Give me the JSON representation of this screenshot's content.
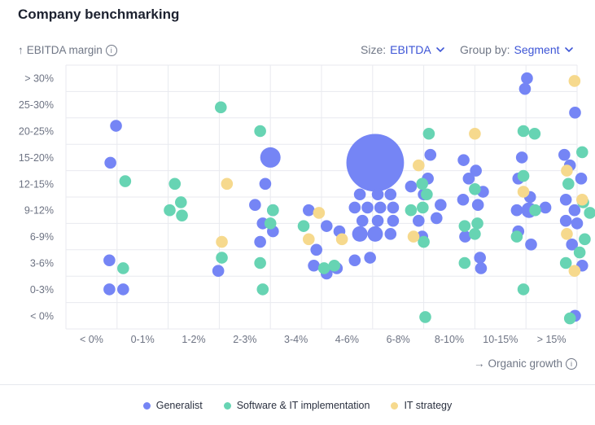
{
  "title": "Company benchmarking",
  "y_axis_label": "EBITDA margin",
  "x_axis_label": "Organic growth",
  "arrow_up": "↑",
  "arrow_right": "→",
  "info_glyph": "i",
  "size_control": {
    "label": "Size:",
    "value": "EBITDA"
  },
  "group_control": {
    "label": "Group by:",
    "value": "Segment"
  },
  "colors": {
    "Generalist": "#7585f5",
    "Software & IT implementation": "#67d4b3",
    "IT strategy": "#f6d98d",
    "grid": "#e8eaef",
    "tick": "#6d7383"
  },
  "legend": [
    {
      "label": "Generalist",
      "color": "#7585f5"
    },
    {
      "label": "Software & IT implementation",
      "color": "#67d4b3"
    },
    {
      "label": "IT strategy",
      "color": "#f6d98d"
    }
  ],
  "chart_data": {
    "type": "scatter",
    "title": "Company benchmarking",
    "xlabel": "Organic growth",
    "ylabel": "EBITDA margin",
    "x_categories": [
      "< 0%",
      "0-1%",
      "1-2%",
      "2-3%",
      "3-4%",
      "4-6%",
      "6-8%",
      "8-10%",
      "10-15%",
      "> 15%"
    ],
    "y_categories": [
      "< 0%",
      "0-3%",
      "3-6%",
      "6-9%",
      "9-12%",
      "12-15%",
      "15-20%",
      "20-25%",
      "25-30%",
      "> 30%"
    ],
    "size_by": "EBITDA",
    "group_by": "Segment",
    "series": [
      {
        "name": "Generalist",
        "points": [
          [
            0.48,
            7.2,
            1
          ],
          [
            0.37,
            5.8,
            1
          ],
          [
            0.35,
            2.1,
            1
          ],
          [
            0.35,
            1.0,
            1
          ],
          [
            0.62,
            1.0,
            1
          ],
          [
            2.48,
            1.7,
            1
          ],
          [
            3.5,
            6.0,
            3
          ],
          [
            3.4,
            5.0,
            1
          ],
          [
            3.2,
            4.2,
            1
          ],
          [
            3.55,
            4.0,
            1
          ],
          [
            3.35,
            3.5,
            1
          ],
          [
            3.55,
            3.2,
            1
          ],
          [
            3.3,
            2.8,
            1
          ],
          [
            4.25,
            4.0,
            1
          ],
          [
            4.6,
            3.4,
            1
          ],
          [
            4.85,
            3.2,
            1
          ],
          [
            4.4,
            2.5,
            1
          ],
          [
            4.8,
            1.8,
            1
          ],
          [
            4.6,
            1.6,
            1
          ],
          [
            4.35,
            1.9,
            1
          ],
          [
            5.55,
            5.8,
            6
          ],
          [
            5.25,
            4.6,
            1
          ],
          [
            5.6,
            4.6,
            1
          ],
          [
            5.85,
            4.6,
            1
          ],
          [
            5.15,
            4.1,
            1
          ],
          [
            5.4,
            4.1,
            1
          ],
          [
            5.65,
            4.1,
            1
          ],
          [
            5.9,
            4.1,
            1
          ],
          [
            5.3,
            3.6,
            1
          ],
          [
            5.6,
            3.6,
            1
          ],
          [
            5.9,
            3.6,
            1
          ],
          [
            5.25,
            3.1,
            2
          ],
          [
            5.55,
            3.1,
            2
          ],
          [
            5.85,
            3.1,
            1
          ],
          [
            5.15,
            2.1,
            1
          ],
          [
            5.45,
            2.2,
            1
          ],
          [
            6.63,
            6.1,
            1
          ],
          [
            6.58,
            5.2,
            1
          ],
          [
            6.25,
            4.9,
            1
          ],
          [
            6.83,
            4.2,
            1
          ],
          [
            6.5,
            4.6,
            1
          ],
          [
            6.75,
            3.7,
            1
          ],
          [
            6.4,
            3.6,
            1
          ],
          [
            6.47,
            3.0,
            1
          ],
          [
            7.28,
            5.9,
            1
          ],
          [
            7.52,
            5.5,
            1
          ],
          [
            7.38,
            5.2,
            1
          ],
          [
            7.66,
            4.7,
            1
          ],
          [
            7.27,
            4.4,
            1
          ],
          [
            7.56,
            4.2,
            1
          ],
          [
            7.31,
            3.0,
            1
          ],
          [
            7.6,
            2.2,
            1
          ],
          [
            7.62,
            1.8,
            1
          ],
          [
            8.52,
            9.0,
            1
          ],
          [
            8.48,
            8.6,
            1
          ],
          [
            8.42,
            6.0,
            1
          ],
          [
            8.35,
            5.2,
            1
          ],
          [
            8.58,
            4.5,
            1
          ],
          [
            8.32,
            4.0,
            1
          ],
          [
            8.56,
            4.0,
            2
          ],
          [
            8.88,
            4.1,
            1
          ],
          [
            8.35,
            3.2,
            1
          ],
          [
            8.6,
            2.7,
            1
          ],
          [
            9.46,
            7.7,
            1
          ],
          [
            9.25,
            6.1,
            1
          ],
          [
            9.36,
            5.7,
            1
          ],
          [
            9.58,
            5.2,
            1
          ],
          [
            9.28,
            4.4,
            1
          ],
          [
            9.45,
            4.0,
            1
          ],
          [
            9.28,
            3.6,
            1
          ],
          [
            9.5,
            3.5,
            1
          ],
          [
            9.4,
            2.7,
            1
          ],
          [
            9.6,
            1.9,
            1
          ],
          [
            9.46,
            0.0,
            1
          ]
        ]
      },
      {
        "name": "Software & IT implementation",
        "points": [
          [
            0.66,
            5.1,
            1
          ],
          [
            0.62,
            1.8,
            1
          ],
          [
            1.63,
            5.0,
            1
          ],
          [
            1.75,
            4.3,
            1
          ],
          [
            1.53,
            4.0,
            1
          ],
          [
            1.77,
            3.8,
            1
          ],
          [
            2.53,
            7.9,
            1
          ],
          [
            2.55,
            2.2,
            1
          ],
          [
            3.3,
            7.0,
            1
          ],
          [
            3.55,
            4.0,
            1
          ],
          [
            3.5,
            3.5,
            1
          ],
          [
            3.3,
            2.0,
            1
          ],
          [
            3.35,
            1.0,
            1
          ],
          [
            4.15,
            3.4,
            1
          ],
          [
            4.55,
            1.8,
            1
          ],
          [
            4.75,
            1.9,
            1
          ],
          [
            6.6,
            6.9,
            1
          ],
          [
            6.47,
            5.0,
            1
          ],
          [
            6.56,
            4.6,
            1
          ],
          [
            6.25,
            4.0,
            1
          ],
          [
            6.48,
            4.1,
            1
          ],
          [
            6.5,
            2.8,
            1
          ],
          [
            6.53,
            -0.05,
            1
          ],
          [
            7.5,
            4.8,
            1
          ],
          [
            7.55,
            3.5,
            1
          ],
          [
            7.3,
            3.4,
            1
          ],
          [
            7.5,
            3.1,
            1
          ],
          [
            7.3,
            2.0,
            1
          ],
          [
            8.45,
            7.0,
            1
          ],
          [
            8.67,
            6.9,
            1
          ],
          [
            8.45,
            5.3,
            1
          ],
          [
            8.68,
            4.0,
            1
          ],
          [
            8.32,
            3.0,
            1
          ],
          [
            8.45,
            1.0,
            1
          ],
          [
            9.6,
            6.2,
            1
          ],
          [
            9.33,
            5.0,
            1
          ],
          [
            9.55,
            2.4,
            1
          ],
          [
            9.62,
            4.3,
            1
          ],
          [
            9.75,
            3.9,
            1
          ],
          [
            9.65,
            2.9,
            1
          ],
          [
            9.28,
            2.0,
            1
          ],
          [
            9.36,
            -0.1,
            1
          ]
        ]
      },
      {
        "name": "IT strategy",
        "points": [
          [
            2.65,
            5.0,
            1
          ],
          [
            2.55,
            2.8,
            1
          ],
          [
            4.45,
            3.9,
            1
          ],
          [
            4.25,
            2.9,
            1
          ],
          [
            4.9,
            2.9,
            1
          ],
          [
            6.4,
            5.7,
            1
          ],
          [
            6.3,
            3.0,
            1
          ],
          [
            7.5,
            6.9,
            1
          ],
          [
            8.45,
            4.7,
            1
          ],
          [
            9.45,
            8.9,
            1
          ],
          [
            9.3,
            5.5,
            1
          ],
          [
            9.6,
            4.4,
            1
          ],
          [
            9.3,
            3.1,
            1
          ],
          [
            9.45,
            1.7,
            1
          ]
        ]
      }
    ]
  }
}
